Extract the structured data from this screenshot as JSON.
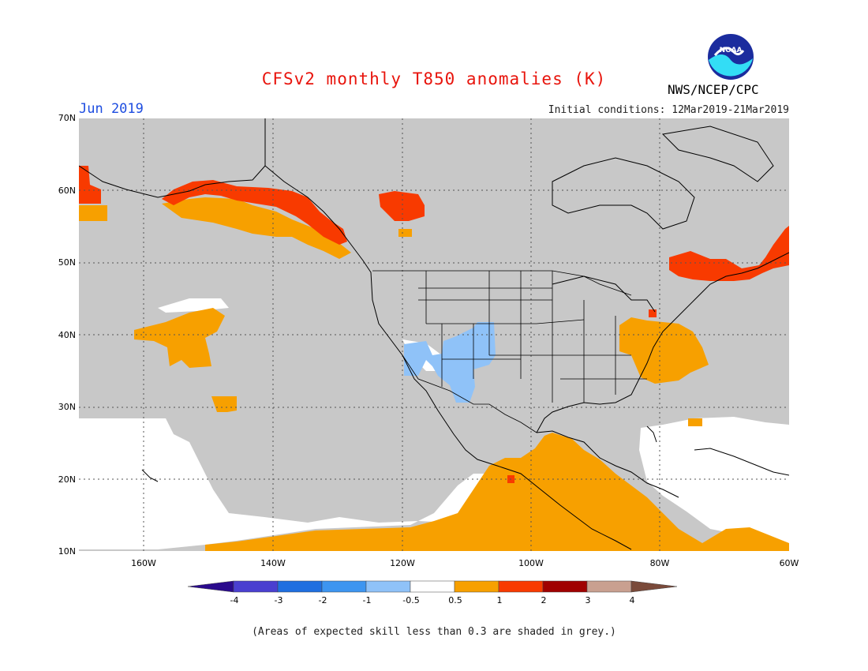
{
  "title": "CFSv2 monthly T850 anomalies (K)",
  "month": "Jun 2019",
  "initial_conditions": "Initial conditions: 12Mar2019-21Mar2019",
  "agency": "NWS/NCEP/CPC",
  "logo_text": "NOAA",
  "footnote": "(Areas of expected skill less than 0.3 are shaded in grey.)",
  "lat_labels": [
    "70N",
    "60N",
    "50N",
    "40N",
    "30N",
    "20N",
    "10N"
  ],
  "lon_labels": [
    "160W",
    "140W",
    "120W",
    "100W",
    "80W",
    "60W"
  ],
  "colorbar": {
    "labels": [
      "-4",
      "-3",
      "-2",
      "-1",
      "-0.5",
      "0.5",
      "1",
      "2",
      "3",
      "4"
    ],
    "colors": [
      "#2a0a8c",
      "#4a3fd0",
      "#1f6fe0",
      "#3d95f0",
      "#8fc2f8",
      "#ffffff",
      "#f7a000",
      "#f83a00",
      "#a00000",
      "#c9a090",
      "#7a4a3a"
    ]
  },
  "map_colors": {
    "ocean_low_skill": "#c8c8c8",
    "land_low_skill": "#c8c8c8",
    "neutral": "#ffffff",
    "warm_05_1": "#f7a000",
    "warm_1_2": "#f83a00",
    "warm_2_3": "#e02818",
    "cool_05_1": "#8fc2f8"
  }
}
